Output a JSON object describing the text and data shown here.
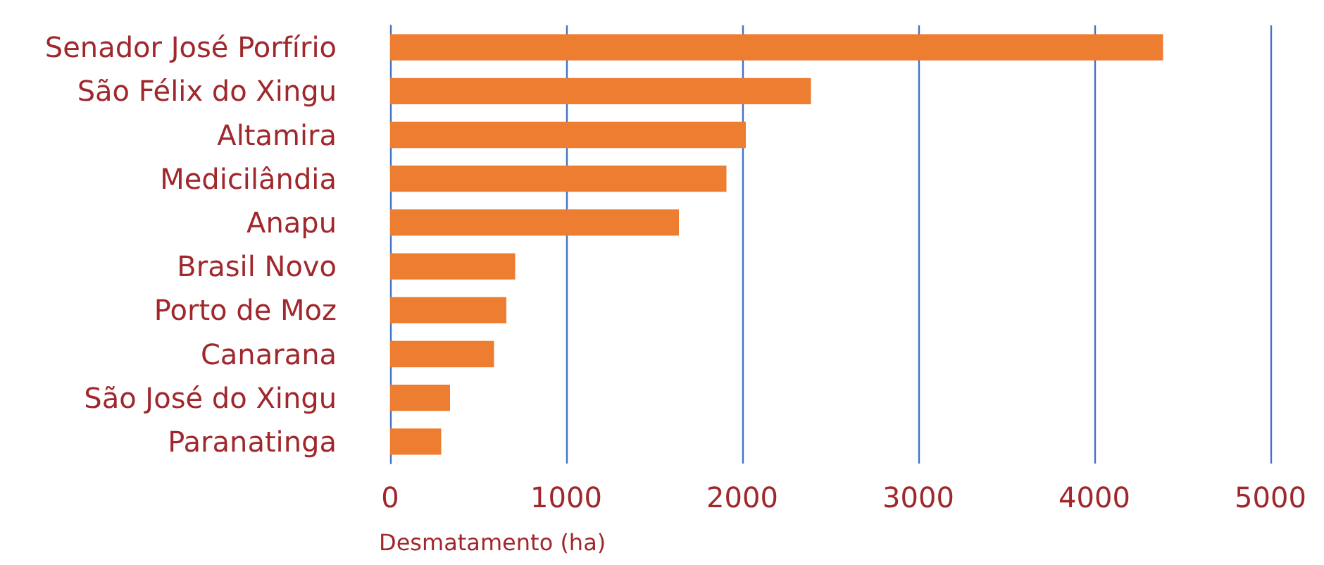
{
  "chart_data": {
    "type": "bar",
    "orientation": "horizontal",
    "xlabel": "Desmatamento (ha)",
    "categories": [
      "Senador José Porfírio",
      "São Félix do Xingu",
      "Altamira",
      "Medicilândia",
      "Anapu",
      "Brasil Novo",
      "Porto de Moz",
      "Canarana",
      "São José do Xingu",
      "Paranatinga"
    ],
    "values": [
      4390,
      2390,
      2020,
      1910,
      1640,
      710,
      660,
      590,
      340,
      290
    ],
    "color": "#ed7d31",
    "xlim": [
      0,
      5000
    ],
    "xticks": [
      0,
      1000,
      2000,
      3000,
      4000,
      5000
    ],
    "grid": "x"
  }
}
